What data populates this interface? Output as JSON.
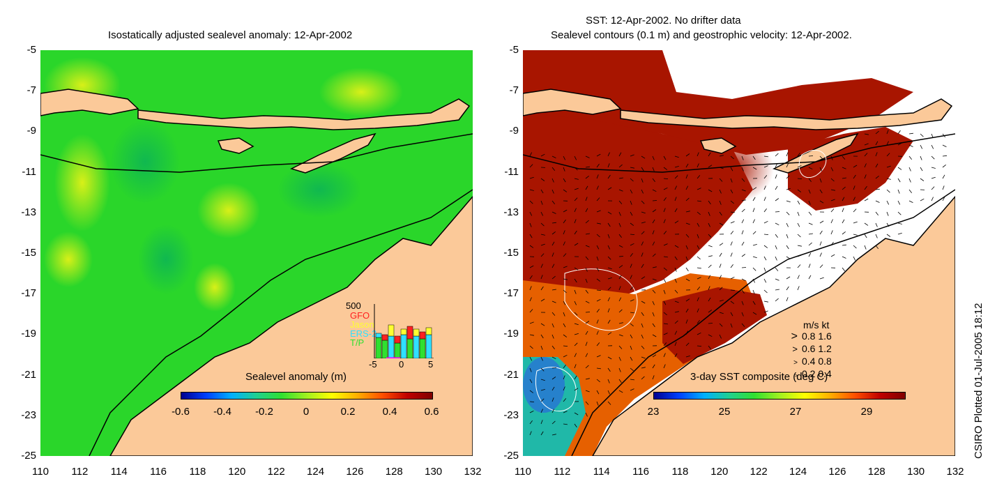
{
  "left_panel": {
    "title": "Isostatically adjusted sealevel anomaly: 12-Apr-2002",
    "y_ticks": [
      "-5",
      "-7",
      "-9",
      "-11",
      "-13",
      "-15",
      "-17",
      "-19",
      "-21",
      "-23",
      "-25"
    ],
    "x_ticks": [
      "110",
      "112",
      "114",
      "116",
      "118",
      "120",
      "122",
      "124",
      "126",
      "128",
      "130",
      "132"
    ],
    "colorbar": {
      "label": "Sealevel anomaly (m)",
      "ticks": [
        "-0.6",
        "-0.4",
        "-0.2",
        "0",
        "0.2",
        "0.4",
        "0.6"
      ]
    },
    "inset": {
      "top_label": "500",
      "satellites": [
        {
          "name": "GFO",
          "color": "#ff2020"
        },
        {
          "name": "Jason",
          "color": "#ffff30"
        },
        {
          "name": "ERS-2",
          "color": "#30e0ff"
        },
        {
          "name": "T/P",
          "color": "#30e030"
        }
      ],
      "x_ticks": [
        "-5",
        "0",
        "5"
      ]
    }
  },
  "right_panel": {
    "title_line1": "SST: 12-Apr-2002. No drifter data",
    "title_line2": "Sealevel contours (0.1 m) and geostrophic velocity: 12-Apr-2002.",
    "y_ticks": [
      "-5",
      "-7",
      "-9",
      "-11",
      "-13",
      "-15",
      "-17",
      "-19",
      "-21",
      "-23",
      "-25"
    ],
    "x_ticks": [
      "110",
      "112",
      "114",
      "116",
      "118",
      "120",
      "122",
      "124",
      "126",
      "128",
      "130",
      "132"
    ],
    "colorbar": {
      "label": "3-day SST composite (deg C)",
      "ticks": [
        "23",
        "25",
        "27",
        "29"
      ]
    },
    "velocity_key": {
      "header": "m/s  kt",
      "rows": [
        "0.8  1.6",
        "0.6  1.2",
        "0.4  0.8",
        "0.2  0.4"
      ]
    }
  },
  "credit": "CSIRO Plotted 01-Jul-2005 18:12",
  "colors": {
    "land": "#fbc999",
    "coast": "#000000",
    "sla_base": "#29d629",
    "sst_hot": "#a81500",
    "missing": "#ffffff"
  }
}
